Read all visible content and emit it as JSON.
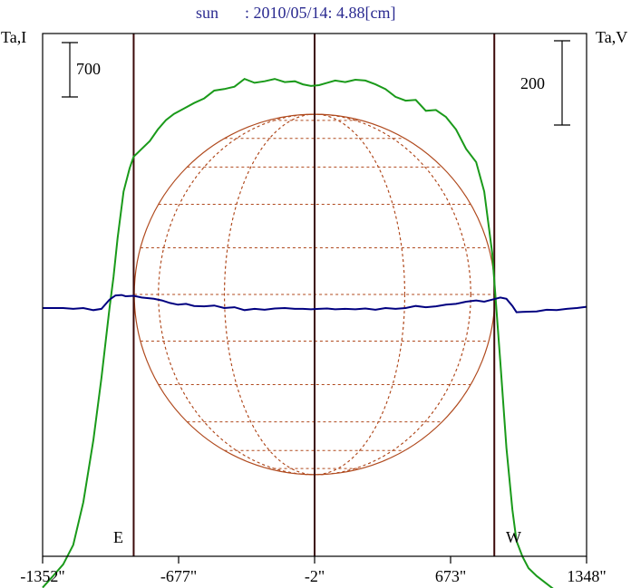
{
  "chart_data": {
    "type": "line",
    "title_name": "sun",
    "title_info": ": 2010/05/14: 4.88[cm]",
    "left_axis_label": "Ta,I",
    "right_axis_label": "Ta,V",
    "scale_bar_left": "700",
    "scale_bar_right": "200",
    "east_label": "E",
    "west_label": "W",
    "xlim": [
      -1352,
      1348
    ],
    "x_tick_labels": [
      "-1352\"",
      "-677\"",
      "-2\"",
      "673\"",
      "1348\""
    ],
    "x_ticks": [
      -1352,
      -677,
      -2,
      673,
      1348
    ],
    "limb_positions": [
      -900,
      890
    ],
    "colors": {
      "title_text": "#2a2a90",
      "intensity": "#1a9a1a",
      "polarization": "#000080",
      "limb_lines": "#3c0a0a",
      "disk_grid": "#b04a1e",
      "frame": "#000000"
    },
    "series": [
      {
        "name": "Ta,I",
        "x": [
          -1352,
          -1300,
          -1250,
          -1200,
          -1150,
          -1100,
          -1060,
          -1020,
          -1000,
          -980,
          -950,
          -920,
          -900,
          -880,
          -860,
          -820,
          -780,
          -740,
          -700,
          -650,
          -600,
          -550,
          -500,
          -450,
          -400,
          -350,
          -300,
          -250,
          -200,
          -150,
          -100,
          -60,
          -20,
          20,
          60,
          100,
          150,
          200,
          250,
          300,
          350,
          400,
          450,
          500,
          550,
          600,
          650,
          700,
          750,
          800,
          840,
          880,
          920,
          950,
          980,
          1000,
          1030,
          1060,
          1100,
          1150,
          1200,
          1250,
          1300,
          1348
        ],
        "y": [
          -3600,
          -3450,
          -3300,
          -3050,
          -2500,
          -1700,
          -900,
          0,
          400,
          900,
          1500,
          1800,
          1950,
          2000,
          2050,
          2150,
          2300,
          2420,
          2500,
          2570,
          2640,
          2700,
          2800,
          2820,
          2850,
          2950,
          2900,
          2920,
          2950,
          2910,
          2920,
          2880,
          2860,
          2870,
          2900,
          2930,
          2910,
          2940,
          2930,
          2880,
          2820,
          2720,
          2670,
          2680,
          2540,
          2550,
          2460,
          2300,
          2050,
          1880,
          1500,
          700,
          -700,
          -1800,
          -2600,
          -3000,
          -3200,
          -3350,
          -3450,
          -3550,
          -3650,
          -3700,
          -3750,
          -3800
        ]
      },
      {
        "name": "Ta,V",
        "x": [
          -1352,
          -1300,
          -1250,
          -1200,
          -1150,
          -1100,
          -1060,
          -1020,
          -990,
          -960,
          -940,
          -900,
          -860,
          -800,
          -760,
          -720,
          -680,
          -640,
          -600,
          -550,
          -500,
          -450,
          -400,
          -350,
          -300,
          -250,
          -200,
          -150,
          -100,
          -60,
          -20,
          20,
          60,
          100,
          150,
          200,
          250,
          300,
          350,
          400,
          450,
          500,
          550,
          600,
          650,
          700,
          750,
          800,
          840,
          880,
          920,
          950,
          980,
          1000,
          1030,
          1100,
          1150,
          1200,
          1250,
          1300,
          1348
        ],
        "y": [
          0,
          0,
          0,
          -2,
          0,
          -5,
          -2,
          20,
          30,
          31,
          28,
          29,
          25,
          22,
          18,
          12,
          8,
          10,
          5,
          4,
          6,
          0,
          2,
          -5,
          -2,
          -4,
          -1,
          0,
          -2,
          -2,
          -3,
          -2,
          -1,
          -3,
          -2,
          -3,
          -1,
          -4,
          0,
          -2,
          0,
          5,
          2,
          4,
          8,
          10,
          15,
          18,
          15,
          20,
          25,
          22,
          5,
          -10,
          -9,
          -8,
          -4,
          -5,
          -2,
          0,
          3
        ]
      }
    ]
  }
}
